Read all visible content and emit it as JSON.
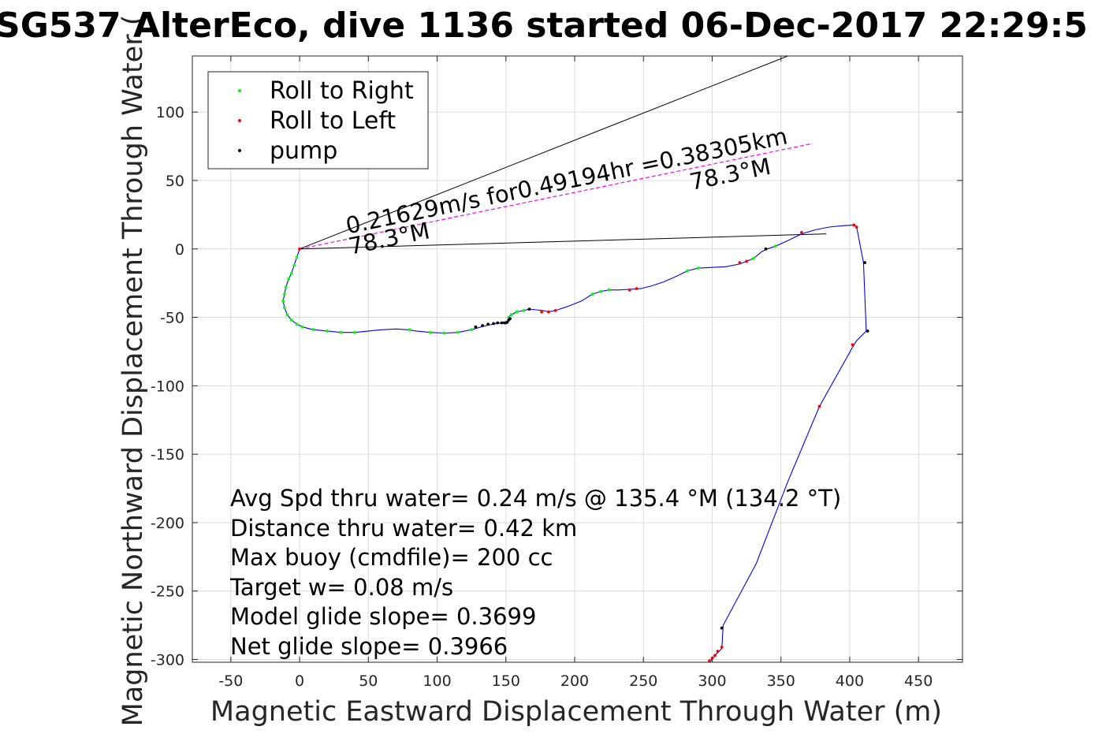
{
  "chart_data": {
    "type": "scatter",
    "title": "SG537 AlterEco, dive 1136 started 06-Dec-2017 22:29:5",
    "xlabel": "Magnetic Eastward Displacement Through Water (m)",
    "ylabel": "Magnetic Northward Displacement Through Water (",
    "xlim": [
      -78,
      482
    ],
    "ylim": [
      -302,
      141
    ],
    "xticks": [
      -50,
      0,
      50,
      100,
      150,
      200,
      250,
      300,
      350,
      400,
      450
    ],
    "yticks": [
      100,
      50,
      0,
      -50,
      -100,
      -150,
      -200,
      -250,
      -300
    ],
    "grid": true,
    "legend_position": "top-left",
    "legend": [
      {
        "label": "Roll to Right",
        "color": "#00ff00"
      },
      {
        "label": "Roll to Left",
        "color": "#ff0000"
      },
      {
        "label": "pump",
        "color": "#000000"
      }
    ],
    "track": {
      "color": "#0000ff",
      "points": [
        [
          0,
          0
        ],
        [
          -2,
          -6
        ],
        [
          -4,
          -12
        ],
        [
          -6,
          -18
        ],
        [
          -8,
          -22
        ],
        [
          -10,
          -28
        ],
        [
          -11,
          -33
        ],
        [
          -12,
          -38
        ],
        [
          -11,
          -43
        ],
        [
          -9,
          -48
        ],
        [
          -6,
          -52
        ],
        [
          -2,
          -55
        ],
        [
          2,
          -57
        ],
        [
          10,
          -59
        ],
        [
          20,
          -60
        ],
        [
          30,
          -61
        ],
        [
          40,
          -61
        ],
        [
          50,
          -60
        ],
        [
          60,
          -59
        ],
        [
          70,
          -58.5
        ],
        [
          78,
          -59
        ],
        [
          85,
          -60
        ],
        [
          95,
          -61
        ],
        [
          105,
          -61.5
        ],
        [
          115,
          -61
        ],
        [
          125,
          -59
        ],
        [
          132,
          -57
        ],
        [
          138,
          -55.5
        ],
        [
          143,
          -54.5
        ],
        [
          148,
          -54
        ],
        [
          151,
          -53
        ],
        [
          152,
          -50
        ],
        [
          154,
          -48
        ],
        [
          158,
          -46
        ],
        [
          163,
          -45
        ],
        [
          167,
          -44
        ],
        [
          172,
          -44.5
        ],
        [
          177,
          -45
        ],
        [
          181,
          -46
        ],
        [
          186,
          -45
        ],
        [
          195,
          -42
        ],
        [
          205,
          -38
        ],
        [
          213,
          -33
        ],
        [
          219,
          -31
        ],
        [
          225,
          -30
        ],
        [
          232,
          -30
        ],
        [
          240,
          -29.5
        ],
        [
          248,
          -29
        ],
        [
          256,
          -27
        ],
        [
          265,
          -24
        ],
        [
          274,
          -20
        ],
        [
          282,
          -16
        ],
        [
          290,
          -14
        ],
        [
          300,
          -13.5
        ],
        [
          310,
          -13
        ],
        [
          320,
          -11
        ],
        [
          330,
          -7
        ],
        [
          336,
          -2
        ],
        [
          340,
          0
        ],
        [
          346,
          2
        ],
        [
          355,
          6
        ],
        [
          365,
          11
        ],
        [
          375,
          14
        ],
        [
          385,
          16
        ],
        [
          395,
          17
        ],
        [
          403,
          17.5
        ],
        [
          405,
          16
        ],
        [
          410,
          -10
        ],
        [
          412,
          -60
        ],
        [
          405,
          -67
        ],
        [
          402,
          -72
        ],
        [
          378,
          -115
        ],
        [
          355,
          -170
        ],
        [
          332,
          -230
        ],
        [
          308,
          -275
        ],
        [
          307,
          -292
        ],
        [
          302,
          -297
        ],
        [
          299,
          -301
        ]
      ]
    },
    "series": [
      {
        "name": "Roll to Right",
        "color": "#00ff00",
        "x": [
          -2,
          -4,
          -6,
          -8,
          -10,
          -11,
          -12,
          -11,
          -9,
          -6,
          -2,
          2,
          10,
          20,
          30,
          40,
          80,
          95,
          105,
          115,
          125,
          152,
          154,
          158,
          163,
          213,
          219,
          225,
          282,
          290,
          330,
          346
        ],
        "y": [
          -6,
          -12,
          -18,
          -22,
          -28,
          -33,
          -38,
          -43,
          -48,
          -52,
          -55,
          -57,
          -59,
          -60,
          -61,
          -61,
          -59,
          -61,
          -61.5,
          -61,
          -59,
          -50,
          -48,
          -46,
          -45,
          -33,
          -31,
          -30,
          -16,
          -14,
          -7,
          2
        ]
      },
      {
        "name": "Roll to Left",
        "color": "#ff0000",
        "x": [
          0,
          176,
          181,
          186,
          240,
          245,
          320,
          325,
          365,
          403,
          405,
          402,
          378,
          307,
          304,
          302,
          300,
          298
        ],
        "y": [
          0,
          -46,
          -46,
          -45,
          -30,
          -29,
          -10,
          -9,
          12,
          17.5,
          16,
          -70,
          -115,
          -291,
          -294,
          -297,
          -299,
          -301
        ]
      },
      {
        "name": "pump",
        "color": "#000000",
        "x": [
          128,
          133,
          137,
          141,
          144,
          147,
          149,
          150,
          151,
          152,
          153,
          167,
          411,
          413,
          307,
          339
        ],
        "y": [
          -57,
          -56,
          -55,
          -54.5,
          -54,
          -54,
          -54,
          -54,
          -53.5,
          -52,
          -51,
          -44,
          -10,
          -60,
          -277,
          0
        ]
      }
    ],
    "lines": [
      {
        "x": [
          0,
          373
        ],
        "y": [
          0,
          77
        ],
        "color": "#ff00ff"
      },
      {
        "x": [
          0,
          383
        ],
        "y": [
          0,
          11
        ],
        "color": "#000000"
      },
      {
        "x": [
          0,
          355
        ],
        "y": [
          0,
          141
        ],
        "color": "#000000"
      }
    ],
    "annotations": [
      {
        "text": "0.21629m/s for0.49194hr =0.38305km",
        "x": 35,
        "y": 11,
        "angle": -11.6
      },
      {
        "text": "78.3°M",
        "x": 37,
        "y": -4,
        "angle": -11.6
      },
      {
        "text": "78.3°M",
        "x": 285,
        "y": 43,
        "angle": -11.6
      }
    ],
    "stats": [
      "Avg Spd thru water=  0.24 m/s @ 135.4 °M (134.2 °T)",
      "Distance thru water=  0.42 km",
      "Max buoy (cmdfile)= 200 cc",
      "Target w= 0.08 m/s",
      "Model glide slope= 0.3699",
      "Net glide slope= 0.3966"
    ]
  }
}
